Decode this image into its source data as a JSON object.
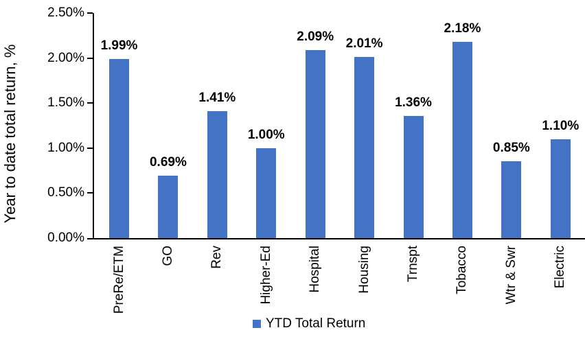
{
  "chart_data": {
    "type": "bar",
    "title": "",
    "xlabel": "",
    "ylabel": "Year to date total return, %",
    "categories": [
      "PreRe/ETM",
      "GO",
      "Rev",
      "Higher-Ed",
      "Hospital",
      "Housing",
      "Trnspt",
      "Tobacco",
      "Wtr & Swr",
      "Electric"
    ],
    "values": [
      1.99,
      0.69,
      1.41,
      1.0,
      2.09,
      2.01,
      1.36,
      2.18,
      0.85,
      1.1
    ],
    "value_labels": [
      "1.99%",
      "0.69%",
      "1.41%",
      "1.00%",
      "2.09%",
      "2.01%",
      "1.36%",
      "2.18%",
      "0.85%",
      "1.10%"
    ],
    "ylim": [
      0,
      2.5
    ],
    "ytick_labels": [
      "0.00%",
      "0.50%",
      "1.00%",
      "1.50%",
      "2.00%",
      "2.50%"
    ],
    "grid": false,
    "bar_color": "#4472C4",
    "axis_color": "#000000",
    "text_color": "#000000",
    "legend": {
      "position": "bottom",
      "items": [
        {
          "label": "YTD Total Return",
          "color": "#4472C4"
        }
      ]
    }
  }
}
